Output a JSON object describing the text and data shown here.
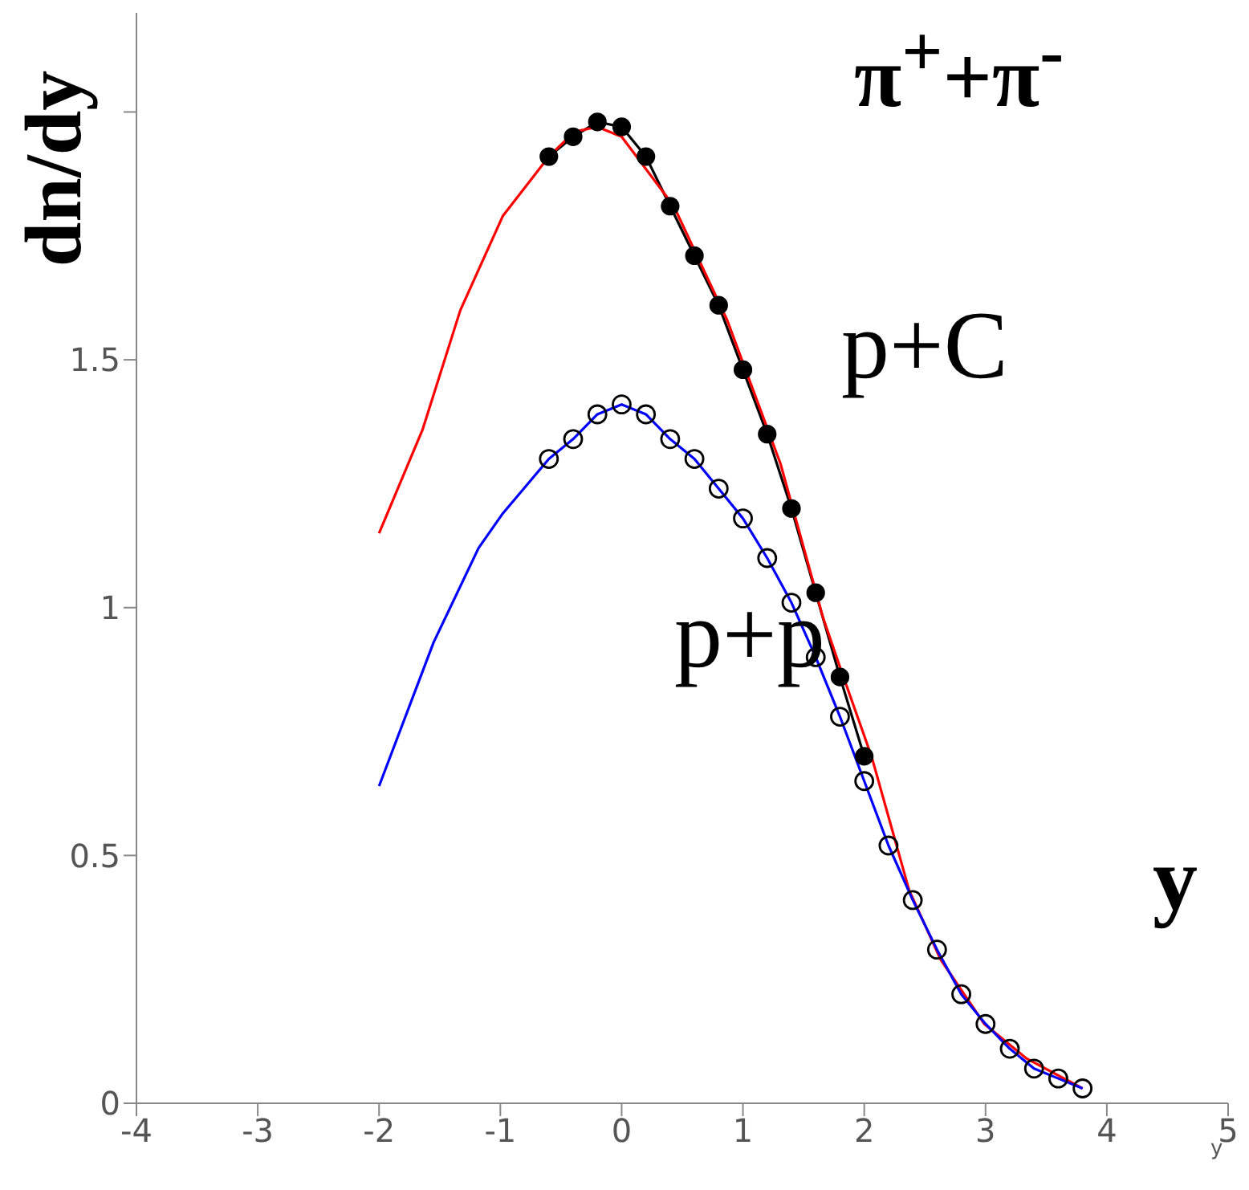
{
  "chart_data": {
    "type": "line",
    "xlabel": "y",
    "ylabel": "dn/dy",
    "annotations": [
      "π$^{+}$+π$^{-}$",
      "p+C",
      "p+p",
      "y"
    ],
    "xlim": [
      -4,
      5
    ],
    "ylim": [
      0,
      2.2
    ],
    "xticks": [
      -4,
      -3,
      -2,
      -1,
      0,
      1,
      2,
      3,
      4,
      5
    ],
    "yticks": [
      0,
      0.5,
      1,
      1.5,
      {
        "value": 2,
        "label": null
      }
    ],
    "grid": false,
    "series": [
      {
        "marker": "circle",
        "color": "#000000",
        "x": [
          -0.6,
          -0.4,
          -0.2,
          0,
          0.2,
          0.4,
          0.6,
          0.8,
          1.0,
          1.2,
          1.4,
          1.6,
          1.8,
          2.0
        ],
        "values": [
          1.91,
          1.95,
          1.98,
          1.97,
          1.91,
          1.81,
          1.71,
          1.61,
          1.48,
          1.35,
          1.2,
          1.03,
          0.86,
          0.7
        ]
      },
      {
        "marker": "none",
        "color": "#ff0000",
        "x": [
          -2,
          -1.64,
          -1.33,
          -0.98,
          -0.6,
          -0.39,
          -0.2,
          0,
          0.43,
          0.87,
          1.31,
          1.66,
          1.8,
          2.06,
          2.37,
          2.63,
          2.99,
          3.34,
          3.8
        ],
        "values": [
          1.15,
          1.36,
          1.6,
          1.79,
          1.91,
          1.96,
          1.97,
          1.95,
          1.81,
          1.58,
          1.29,
          0.98,
          0.88,
          0.7,
          0.43,
          0.29,
          0.16,
          0.09,
          0.03
        ]
      },
      {
        "marker": "none",
        "color": "#0000ff",
        "x": [
          -2,
          -1.55,
          -1.18,
          -0.98,
          -0.6,
          -0.4,
          -0.2,
          0,
          0.2,
          0.4,
          0.6,
          0.8,
          1.0,
          1.2,
          1.4,
          1.6,
          1.8,
          2.0,
          2.2,
          2.4,
          2.6,
          2.8,
          3.0,
          3.2,
          3.4,
          3.6,
          3.8
        ],
        "values": [
          0.64,
          0.93,
          1.12,
          1.19,
          1.3,
          1.34,
          1.39,
          1.41,
          1.39,
          1.34,
          1.3,
          1.24,
          1.18,
          1.1,
          1.01,
          0.9,
          0.78,
          0.65,
          0.52,
          0.41,
          0.31,
          0.22,
          0.16,
          0.11,
          0.07,
          0.05,
          0.03
        ]
      },
      {
        "type": "scatter",
        "marker": "circle",
        "color": "#000000",
        "x": [
          -0.6,
          -0.4,
          -0.2,
          0,
          0.2,
          0.4,
          0.6,
          0.8,
          1.0,
          1.2,
          1.4,
          1.6,
          1.8,
          2.0,
          2.2,
          2.4,
          2.6,
          2.8,
          3.0,
          3.2,
          3.4,
          3.6,
          3.8
        ],
        "values": [
          1.3,
          1.34,
          1.39,
          1.41,
          1.39,
          1.34,
          1.3,
          1.24,
          1.18,
          1.1,
          1.01,
          0.9,
          0.78,
          0.65,
          0.52,
          0.41,
          0.31,
          0.22,
          0.16,
          0.11,
          0.07,
          0.05,
          0.03
        ]
      }
    ]
  }
}
